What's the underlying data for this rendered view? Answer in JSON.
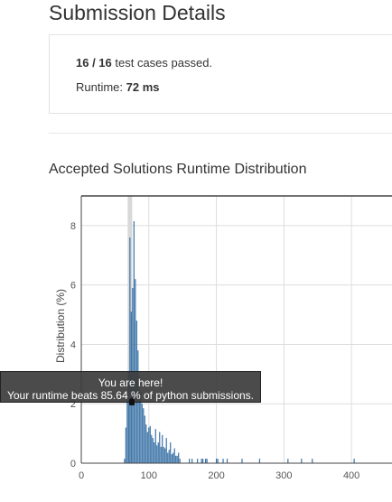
{
  "page": {
    "title": "Submission Details"
  },
  "summary": {
    "passed_count": "16 / 16",
    "passed_text": "test cases passed.",
    "runtime_label": "Runtime:",
    "runtime_value": "72 ms"
  },
  "distribution": {
    "section_title": "Accepted Solutions Runtime Distribution",
    "tooltip_line1": "You are here!",
    "tooltip_line2": "Your runtime beats 85.64 % of python submissions.",
    "marker_runtime": 72
  },
  "chart_data": {
    "type": "bar",
    "title": "",
    "xlabel": "",
    "ylabel": "Distribution (%)",
    "xlim": [
      0,
      460
    ],
    "ylim": [
      0,
      9
    ],
    "xticks": [
      0,
      100,
      200,
      300,
      400
    ],
    "yticks": [
      0,
      2,
      4,
      6,
      8
    ],
    "bar_color": "#3a72a6",
    "grid": true,
    "x": [
      64,
      66,
      68,
      70,
      72,
      74,
      76,
      78,
      80,
      82,
      84,
      86,
      88,
      90,
      92,
      94,
      96,
      98,
      100,
      102,
      104,
      106,
      108,
      110,
      112,
      114,
      116,
      118,
      120,
      122,
      124,
      126,
      128,
      130,
      132,
      134,
      136,
      138,
      140,
      142,
      144,
      146,
      160,
      164,
      172,
      178,
      180,
      184,
      186,
      200,
      202,
      210,
      216,
      238,
      264,
      306,
      326,
      342,
      404
    ],
    "values": [
      0.15,
      1.2,
      2.1,
      3.1,
      7.6,
      5.1,
      5.9,
      8.15,
      6.2,
      4.8,
      3.8,
      2.9,
      2.4,
      2.0,
      1.85,
      1.6,
      1.3,
      1.05,
      1.2,
      1.25,
      0.95,
      0.85,
      0.7,
      1.15,
      0.6,
      0.7,
      1.05,
      0.55,
      0.95,
      0.55,
      0.5,
      0.85,
      0.35,
      0.45,
      0.7,
      0.3,
      0.35,
      0.5,
      0.25,
      0.25,
      0.35,
      0.15,
      0.15,
      0.15,
      0.15,
      0.15,
      0.15,
      0.15,
      0.15,
      0.15,
      0.15,
      0.15,
      0.15,
      0.15,
      0.15,
      0.15,
      0.15,
      0.15,
      0.15
    ]
  }
}
